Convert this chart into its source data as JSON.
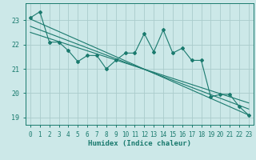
{
  "title": "",
  "xlabel": "Humidex (Indice chaleur)",
  "background_color": "#cce8e8",
  "grid_color": "#aacccc",
  "line_color": "#1a7a6e",
  "xlim": [
    -0.5,
    23.5
  ],
  "ylim": [
    18.7,
    23.7
  ],
  "xticks": [
    0,
    1,
    2,
    3,
    4,
    5,
    6,
    7,
    8,
    9,
    10,
    11,
    12,
    13,
    14,
    15,
    16,
    17,
    18,
    19,
    20,
    21,
    22,
    23
  ],
  "yticks": [
    19,
    20,
    21,
    22,
    23
  ],
  "series": [
    {
      "x": [
        0,
        1,
        2,
        3,
        4,
        5,
        6,
        7,
        8,
        9,
        10,
        11,
        12,
        13,
        14,
        15,
        16,
        17,
        18,
        19,
        20,
        21,
        22,
        23
      ],
      "y": [
        23.1,
        23.35,
        22.1,
        22.1,
        21.75,
        21.3,
        21.55,
        21.55,
        21.0,
        21.35,
        21.65,
        21.65,
        22.45,
        21.7,
        22.6,
        21.65,
        21.85,
        21.35,
        21.35,
        19.85,
        19.95,
        19.95,
        19.45,
        19.1
      ],
      "has_markers": true
    },
    {
      "x": [
        0,
        23
      ],
      "y": [
        23.05,
        19.1
      ],
      "has_markers": false
    },
    {
      "x": [
        0,
        23
      ],
      "y": [
        22.75,
        19.35
      ],
      "has_markers": false
    },
    {
      "x": [
        0,
        23
      ],
      "y": [
        22.5,
        19.6
      ],
      "has_markers": false
    }
  ]
}
